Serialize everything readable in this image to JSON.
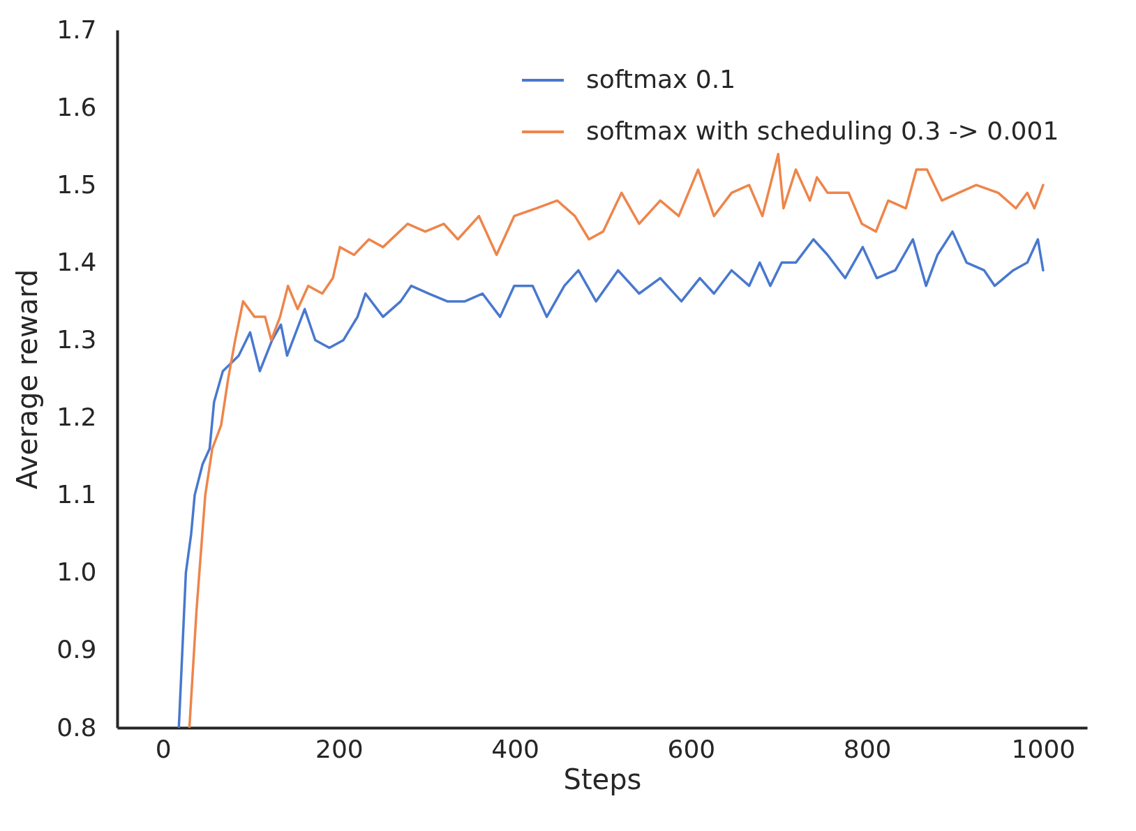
{
  "chart_data": {
    "type": "line",
    "xlabel": "Steps",
    "ylabel": "Average reward",
    "xlim": [
      -52,
      1050
    ],
    "ylim": [
      0.8,
      1.7
    ],
    "xticks": [
      0,
      200,
      400,
      600,
      800,
      1000
    ],
    "yticks": [
      0.8,
      0.9,
      {
        "value": 1,
        "label": "1.0"
      },
      1.1,
      1.2,
      1.3,
      1.4,
      1.5,
      1.6,
      1.7
    ],
    "grid": false,
    "legend": "top right",
    "line_style": "solid",
    "marker": "none",
    "series": [
      {
        "name": "softmax 0.1",
        "color": "#4878cf",
        "x": [
          18,
          26,
          32,
          36,
          45,
          53,
          58,
          68,
          86,
          99,
          110,
          124,
          134,
          141,
          161,
          173,
          189,
          205,
          221,
          230,
          250,
          270,
          282,
          302,
          323,
          343,
          363,
          383,
          399,
          420,
          436,
          456,
          472,
          492,
          517,
          541,
          565,
          589,
          610,
          626,
          646,
          666,
          678,
          690,
          703,
          719,
          739,
          755,
          775,
          795,
          811,
          832,
          852,
          867,
          880,
          897,
          913,
          933,
          945,
          966,
          982,
          994,
          1000
        ],
        "values": [
          0.8,
          1.0,
          1.05,
          1.1,
          1.14,
          1.16,
          1.22,
          1.26,
          1.28,
          1.31,
          1.26,
          1.3,
          1.32,
          1.28,
          1.34,
          1.3,
          1.29,
          1.3,
          1.33,
          1.36,
          1.33,
          1.35,
          1.37,
          1.36,
          1.35,
          1.35,
          1.36,
          1.33,
          1.37,
          1.37,
          1.33,
          1.37,
          1.39,
          1.35,
          1.39,
          1.36,
          1.38,
          1.35,
          1.38,
          1.36,
          1.39,
          1.37,
          1.4,
          1.37,
          1.4,
          1.4,
          1.43,
          1.41,
          1.38,
          1.42,
          1.38,
          1.39,
          1.43,
          1.37,
          1.41,
          1.44,
          1.4,
          1.39,
          1.37,
          1.39,
          1.4,
          1.43,
          1.39
        ]
      },
      {
        "name": "softmax with scheduling 0.3 -> 0.001",
        "color": "#ee854a",
        "x": [
          30,
          38,
          48,
          56,
          66,
          74,
          82,
          91,
          104,
          116,
          123,
          133,
          142,
          153,
          165,
          181,
          193,
          201,
          217,
          234,
          250,
          278,
          298,
          319,
          335,
          359,
          379,
          399,
          424,
          448,
          468,
          484,
          500,
          521,
          541,
          565,
          586,
          608,
          626,
          646,
          666,
          681,
          699,
          705,
          719,
          735,
          743,
          755,
          779,
          794,
          810,
          824,
          844,
          856,
          868,
          885,
          904,
          924,
          949,
          969,
          982,
          990,
          1000
        ],
        "values": [
          0.8,
          0.95,
          1.1,
          1.16,
          1.19,
          1.25,
          1.3,
          1.35,
          1.33,
          1.33,
          1.3,
          1.33,
          1.37,
          1.34,
          1.37,
          1.36,
          1.38,
          1.42,
          1.41,
          1.43,
          1.42,
          1.45,
          1.44,
          1.45,
          1.43,
          1.46,
          1.41,
          1.46,
          1.47,
          1.48,
          1.46,
          1.43,
          1.44,
          1.49,
          1.45,
          1.48,
          1.46,
          1.52,
          1.46,
          1.49,
          1.5,
          1.46,
          1.54,
          1.47,
          1.52,
          1.48,
          1.51,
          1.49,
          1.49,
          1.45,
          1.44,
          1.48,
          1.47,
          1.52,
          1.52,
          1.48,
          1.49,
          1.5,
          1.49,
          1.47,
          1.49,
          1.47,
          1.5
        ]
      }
    ]
  }
}
